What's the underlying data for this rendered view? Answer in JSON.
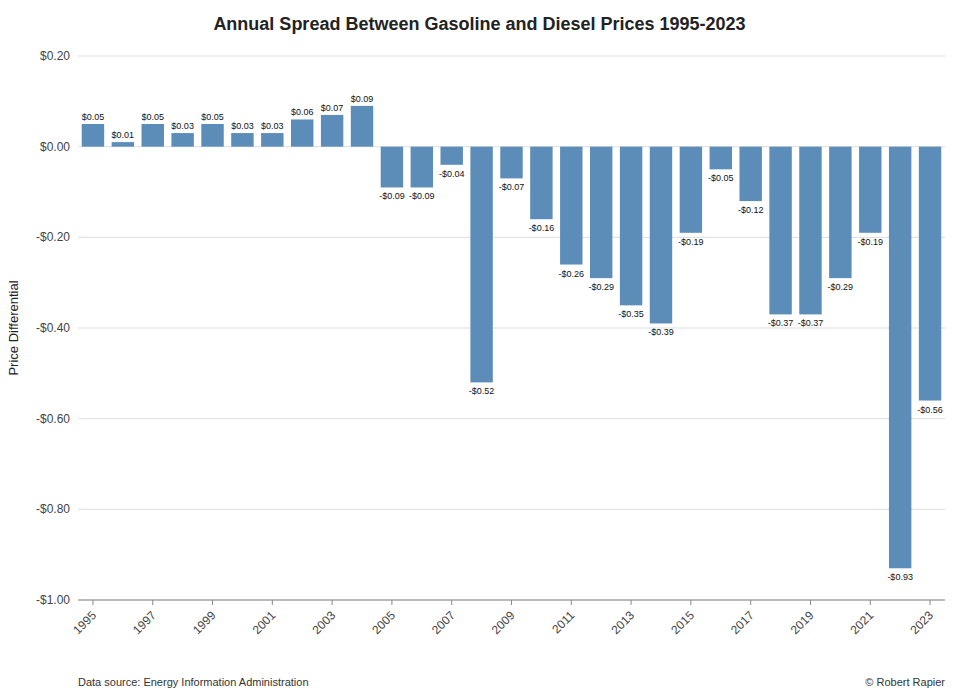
{
  "chart_data": {
    "type": "bar",
    "title": "Annual Spread Between Gasoline and Diesel Prices 1995-2023",
    "ylabel": "Price Differential",
    "categories": [
      "1995",
      null,
      "1997",
      null,
      "1999",
      null,
      "2001",
      null,
      "2003",
      null,
      "2005",
      null,
      "2007",
      null,
      "2009",
      null,
      "2011",
      null,
      "2013",
      null,
      "2015",
      null,
      "2017",
      null,
      "2019",
      null,
      "2021",
      null,
      "2023"
    ],
    "values": [
      0.05,
      0.01,
      0.05,
      0.03,
      0.05,
      0.03,
      0.03,
      0.06,
      0.07,
      0.09,
      -0.09,
      -0.09,
      -0.04,
      -0.52,
      -0.07,
      -0.16,
      -0.26,
      -0.29,
      -0.35,
      -0.39,
      -0.19,
      -0.05,
      -0.12,
      -0.37,
      -0.37,
      -0.29,
      -0.19,
      -0.93,
      -0.56
    ],
    "value_labels": [
      "$0.05",
      "$0.01",
      "$0.05",
      "$0.03",
      "$0.05",
      "$0.03",
      "$0.03",
      "$0.06",
      "$0.07",
      "$0.09",
      "-$0.09",
      "-$0.09",
      "-$0.04",
      "-$0.52",
      "-$0.07",
      "-$0.16",
      "-$0.26",
      "-$0.29",
      "-$0.35",
      "-$0.39",
      "-$0.19",
      "-$0.05",
      "-$0.12",
      "-$0.37",
      "-$0.37",
      "-$0.29",
      "-$0.19",
      "-$0.93",
      "-$0.56"
    ],
    "data_labels": true,
    "color": "#5B8DB8",
    "ylim": [
      -1.0,
      0.2
    ],
    "yticks": [
      {
        "value": 0.2,
        "label": "$0.20"
      },
      {
        "value": 0.0,
        "label": "$0.00"
      },
      {
        "value": -0.2,
        "label": "-$0.20"
      },
      {
        "value": -0.4,
        "label": "-$0.40"
      },
      {
        "value": -0.6,
        "label": "-$0.60"
      },
      {
        "value": -0.8,
        "label": "-$0.80"
      },
      {
        "value": -1.0,
        "label": "-$1.00"
      }
    ],
    "grid": true,
    "annotations": [
      "Data source: Energy Information Administration",
      "© Robert Rapier"
    ]
  }
}
